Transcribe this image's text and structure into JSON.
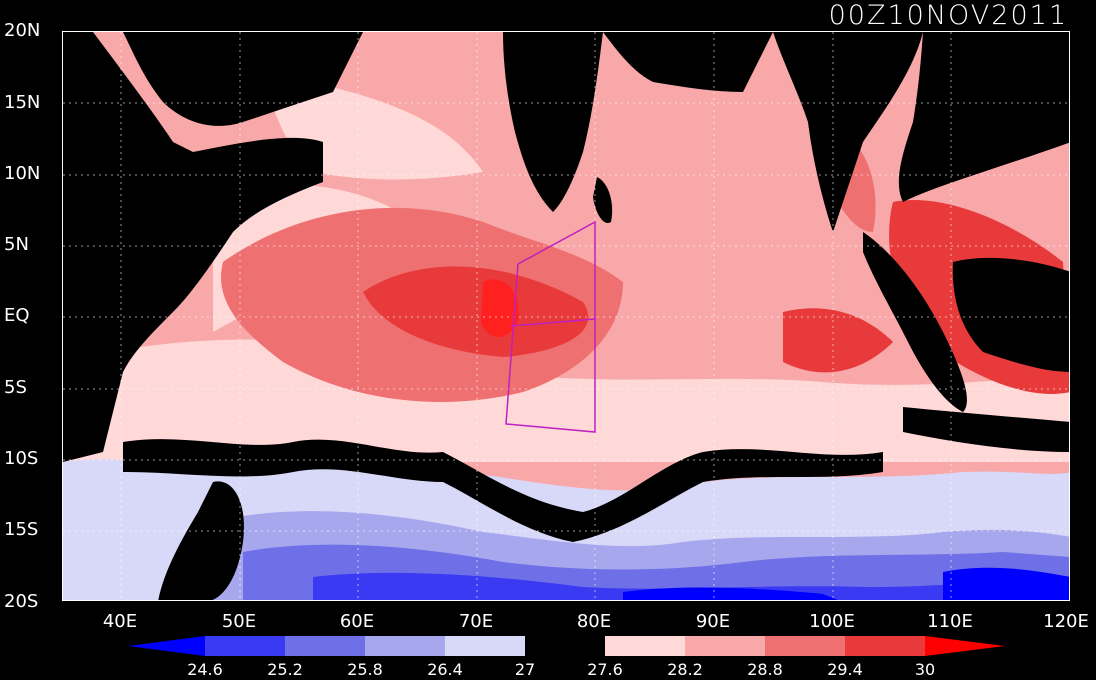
{
  "timestamp": "00Z10NOV2011",
  "axes": {
    "lat_labels": [
      "20N",
      "15N",
      "10N",
      "5N",
      "EQ",
      "5S",
      "10S",
      "15S",
      "20S"
    ],
    "lon_labels": [
      "40E",
      "50E",
      "60E",
      "70E",
      "80E",
      "90E",
      "100E",
      "110E",
      "120E"
    ]
  },
  "colorbar": {
    "ticks": [
      "24.6",
      "25.2",
      "25.8",
      "26.4",
      "27",
      "27.6",
      "28.2",
      "28.8",
      "29.4",
      "30"
    ],
    "colors": [
      "#0000ff",
      "#3a3af2",
      "#6f6fe8",
      "#a7a7ee",
      "#d8d8f8",
      "#000000",
      "#ffd8d8",
      "#f8a8a8",
      "#ee7070",
      "#e83a3a",
      "#ff0000"
    ]
  },
  "palette": {
    "land": "#000000",
    "sea_warm1": "#ffd8d8",
    "sea_warm2": "#f8a8a8",
    "sea_warm3": "#ee7070",
    "sea_warm4": "#e83a3a",
    "sea_cool1": "#d8d8f8",
    "sea_cool2": "#a7a7ee",
    "sea_cool3": "#6f6fe8",
    "sea_cool4": "#3a3af2",
    "sea_cool5": "#0000ff",
    "box_outline": "#c020c0"
  }
}
